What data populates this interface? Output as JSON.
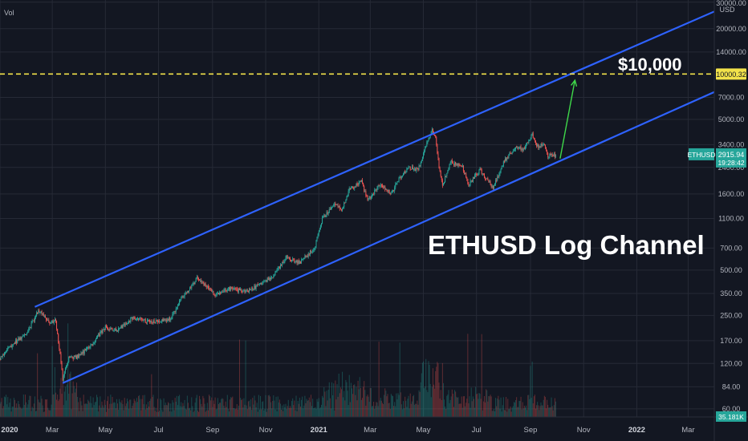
{
  "chart_data": {
    "type": "candlestick",
    "title": "",
    "series_name": "ETHUSD",
    "indicator_label": "Vol",
    "y_scale": "log",
    "y_unit": "USD",
    "ylim": [
      53,
      31000
    ],
    "y_ticks": [
      "30000.00",
      "20000.00",
      "14000.00",
      "10000.32",
      "7000.00",
      "5000.00",
      "3400.00",
      "2400.00",
      "1600.00",
      "1100.00",
      "700.00",
      "500.00",
      "350.00",
      "250.00",
      "170.00",
      "120.00",
      "84.00",
      "60.00"
    ],
    "x_ticks": [
      "2020",
      "Mar",
      "May",
      "Jul",
      "Sep",
      "Nov",
      "2021",
      "Mar",
      "May",
      "Jul",
      "Sep",
      "Nov",
      "2022",
      "Mar"
    ],
    "xlim": [
      "2020-01-01",
      "2022-03-31"
    ],
    "price_path": [
      [
        "2020-01-01",
        130
      ],
      [
        "2020-01-15",
        160
      ],
      [
        "2020-02-01",
        190
      ],
      [
        "2020-02-14",
        270
      ],
      [
        "2020-02-28",
        225
      ],
      [
        "2020-03-05",
        230
      ],
      [
        "2020-03-12",
        110
      ],
      [
        "2020-03-13",
        95
      ],
      [
        "2020-03-20",
        130
      ],
      [
        "2020-04-01",
        135
      ],
      [
        "2020-04-15",
        160
      ],
      [
        "2020-05-01",
        210
      ],
      [
        "2020-05-15",
        200
      ],
      [
        "2020-06-01",
        240
      ],
      [
        "2020-06-15",
        230
      ],
      [
        "2020-07-01",
        228
      ],
      [
        "2020-07-15",
        238
      ],
      [
        "2020-07-25",
        310
      ],
      [
        "2020-08-14",
        440
      ],
      [
        "2020-09-05",
        340
      ],
      [
        "2020-09-20",
        380
      ],
      [
        "2020-10-10",
        360
      ],
      [
        "2020-10-25",
        400
      ],
      [
        "2020-11-10",
        460
      ],
      [
        "2020-11-24",
        610
      ],
      [
        "2020-12-10",
        560
      ],
      [
        "2020-12-27",
        700
      ],
      [
        "2021-01-05",
        1100
      ],
      [
        "2021-01-19",
        1380
      ],
      [
        "2021-01-27",
        1250
      ],
      [
        "2021-02-05",
        1700
      ],
      [
        "2021-02-19",
        1950
      ],
      [
        "2021-02-26",
        1450
      ],
      [
        "2021-03-12",
        1850
      ],
      [
        "2021-03-25",
        1600
      ],
      [
        "2021-04-05",
        2100
      ],
      [
        "2021-04-15",
        2400
      ],
      [
        "2021-04-25",
        2300
      ],
      [
        "2021-05-05",
        3500
      ],
      [
        "2021-05-11",
        4200
      ],
      [
        "2021-05-15",
        3800
      ],
      [
        "2021-05-19",
        2400
      ],
      [
        "2021-05-23",
        1800
      ],
      [
        "2021-06-01",
        2650
      ],
      [
        "2021-06-15",
        2400
      ],
      [
        "2021-06-22",
        1850
      ],
      [
        "2021-07-05",
        2300
      ],
      [
        "2021-07-20",
        1750
      ],
      [
        "2021-08-01",
        2600
      ],
      [
        "2021-08-14",
        3250
      ],
      [
        "2021-08-25",
        3200
      ],
      [
        "2021-09-03",
        3950
      ],
      [
        "2021-09-07",
        3500
      ],
      [
        "2021-09-10",
        3300
      ],
      [
        "2021-09-17",
        3450
      ],
      [
        "2021-09-21",
        2800
      ],
      [
        "2021-09-25",
        3000
      ],
      [
        "2021-09-29",
        2850
      ],
      [
        "2021-09-30",
        2915.94
      ]
    ],
    "channel_upper": [
      [
        "2020-02-10",
        285
      ],
      [
        "2022-03-31",
        26000
      ]
    ],
    "channel_lower": [
      [
        "2020-03-13",
        89
      ],
      [
        "2022-03-31",
        7600
      ]
    ],
    "level_line": {
      "value": 10000.32,
      "label": "10000.32",
      "color": "#f2e24a"
    },
    "arrow": {
      "from": [
        "2021-10-05",
        2750
      ],
      "to": [
        "2021-10-22",
        9100
      ],
      "color": "#3fd94a"
    },
    "annotations": {
      "target": "$10,000",
      "channel": "ETHUSD Log Channel"
    },
    "last_price": {
      "label": "ETHUSD",
      "value": "2915.94",
      "countdown": "19:28:42"
    },
    "volume_label": "35.181K",
    "colors": {
      "up": "#26a69a",
      "down": "#ef5350",
      "channel": "#2e62ff",
      "level": "#f2e24a",
      "arrow": "#3fd94a",
      "background": "#131722",
      "grid": "#262a36"
    },
    "grid": true
  }
}
